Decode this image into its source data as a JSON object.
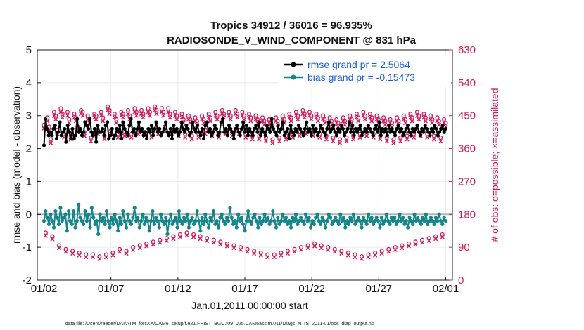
{
  "chart_data": {
    "type": "line",
    "title_line1": "Tropics 34912 / 36016 = 96.935%",
    "title_line2": "RADIOSONDE_V_WIND_COMPONENT @ 831 hPa",
    "xlabel": "Jan.01,2011 00:00:00 start",
    "ylabel_left": "rmse and bias (model - observation)",
    "ylabel_right": "# of obs: o=possible; ×=assimilated",
    "footnote": "data file: /Users/raeder/DAI/ATM_forcXX/CAM6_setup/f.e21.FHIST_BGC.f09_025.CAM6assim.011/Diags_NTrS_2011-01/obs_diag_output.nc",
    "x_ticks": [
      "01/02",
      "01/07",
      "01/12",
      "01/17",
      "01/22",
      "01/27",
      "02/01"
    ],
    "x_tick_days": [
      1,
      6,
      11,
      16,
      21,
      26,
      31
    ],
    "xlim_days": [
      0.5,
      31.5
    ],
    "ylim_left": [
      -2,
      5
    ],
    "y_ticks_left": [
      "-2",
      "-1",
      "0",
      "1",
      "2",
      "3",
      "4",
      "5"
    ],
    "ylim_right": [
      0,
      630
    ],
    "y_ticks_right": [
      "0",
      "90",
      "180",
      "270",
      "360",
      "450",
      "540",
      "630"
    ],
    "zero_line": 0,
    "colors": {
      "rmse": "#000000",
      "bias": "#14858a",
      "obs": "#d0185c",
      "legend_text": "#1a5fd6",
      "zero_line": "#b5b5b5"
    },
    "series": [
      {
        "name": "rmse grand pr = 2.5064",
        "axis": "left",
        "values": [
          2.1,
          2.9,
          2.6,
          2.4,
          2.5,
          2.4,
          2.6,
          2.7,
          2.3,
          2.5,
          2.8,
          2.4,
          2.5,
          2.6,
          2.2,
          2.7,
          2.5,
          2.3,
          2.6,
          2.3,
          2.4,
          2.9,
          2.5,
          2.6,
          2.4,
          2.5,
          2.8,
          2.7,
          2.6,
          2.9,
          2.5,
          2.4,
          2.6,
          2.2,
          2.7,
          2.5,
          2.5,
          2.6,
          2.4,
          2.7,
          2.8,
          2.3,
          2.4,
          2.6,
          2.3,
          2.4,
          2.6,
          2.5,
          2.7,
          2.3,
          2.8,
          2.6,
          2.5,
          2.4,
          2.7,
          2.9,
          2.5,
          2.6,
          2.4,
          2.6,
          2.8,
          2.5,
          2.6,
          2.4,
          2.5,
          2.3,
          2.6,
          2.5,
          2.7,
          2.4,
          2.6,
          2.8,
          2.5,
          2.6,
          2.4,
          2.5,
          2.6,
          2.8,
          2.5,
          2.4,
          2.6,
          2.3,
          2.7,
          2.5,
          2.6,
          2.4,
          2.5,
          2.8,
          2.6,
          2.5,
          2.7,
          2.6,
          2.4,
          2.5,
          2.8,
          2.6,
          2.5,
          2.7,
          2.5,
          2.4,
          2.6,
          2.3,
          2.7,
          2.8,
          2.5,
          2.6,
          2.4,
          2.5,
          2.7,
          2.6,
          2.4,
          2.5,
          2.8,
          2.9,
          2.5,
          2.6,
          2.4,
          2.7,
          2.6,
          2.5,
          2.3,
          2.6,
          2.7,
          2.5,
          2.4,
          2.6,
          2.8,
          2.5,
          2.7,
          2.4,
          2.6,
          2.5,
          2.4,
          2.6,
          2.7,
          2.5,
          2.8,
          2.4,
          2.6,
          2.5,
          2.4,
          2.7,
          2.6,
          2.5,
          2.9,
          2.6,
          2.5,
          2.4,
          2.7,
          2.5,
          2.6,
          2.8,
          2.4,
          2.5,
          2.6,
          2.3,
          2.7,
          2.5,
          2.4,
          2.6,
          2.5,
          2.7,
          2.6,
          2.5,
          2.4,
          2.6,
          2.8,
          2.5,
          2.6,
          2.4,
          2.7,
          2.5,
          2.6,
          2.4,
          2.5,
          2.7,
          2.6,
          2.5,
          2.4,
          2.6,
          2.8,
          2.5,
          2.6,
          2.7,
          2.5,
          2.4,
          2.6,
          2.5,
          2.7,
          2.6,
          2.4,
          2.5,
          2.6,
          2.8,
          2.5,
          2.7,
          2.4,
          2.6,
          2.5,
          2.6,
          2.7,
          2.4,
          2.5,
          2.6,
          2.5,
          2.7,
          2.6,
          2.5,
          2.4,
          2.6,
          2.7,
          2.5,
          2.8,
          2.4,
          2.6,
          2.5,
          2.6,
          2.4,
          2.7,
          2.5,
          2.6,
          2.5,
          2.4,
          2.6,
          2.7,
          2.5,
          2.6,
          2.4,
          2.5,
          2.6,
          2.7,
          2.5,
          2.4,
          2.6,
          2.5,
          2.6,
          2.7,
          2.5,
          2.4,
          2.6,
          2.5,
          2.7,
          2.6,
          2.5,
          2.4,
          2.6,
          2.5,
          2.7,
          2.6,
          2.4,
          2.5,
          2.6,
          2.7,
          2.5,
          2.6
        ]
      },
      {
        "name": "bias grand pr = -0.15473",
        "axis": "left",
        "values": [
          -0.2,
          0.1,
          -0.1,
          -0.3,
          0.0,
          -0.2,
          -0.4,
          0.1,
          -0.1,
          -0.3,
          0.2,
          -0.2,
          -0.1,
          0.0,
          -0.5,
          0.1,
          -0.2,
          -0.3,
          0.1,
          -0.4,
          -0.2,
          0.3,
          -0.1,
          -0.2,
          -0.3,
          0.1,
          -0.2,
          0.0,
          -0.4,
          0.2,
          -0.1,
          -0.3,
          -0.2,
          -0.6,
          0.0,
          -0.2,
          -0.1,
          -0.3,
          0.1,
          -0.2,
          -0.4,
          -0.1,
          -0.3,
          0.0,
          -0.2,
          -0.5,
          -0.1,
          -0.3,
          0.1,
          -0.2,
          -0.4,
          0.0,
          -0.2,
          -0.3,
          -0.1,
          0.2,
          -0.2,
          -0.1,
          -0.4,
          -0.2,
          0.0,
          -0.3,
          -0.1,
          -0.2,
          -0.5,
          -0.2,
          0.1,
          -0.3,
          -0.1,
          -0.2,
          -0.4,
          0.0,
          -0.2,
          -0.3,
          -0.1,
          -0.6,
          -0.2,
          0.0,
          -0.3,
          -0.2,
          -0.1,
          -0.4,
          0.1,
          -0.2,
          -0.3,
          -0.1,
          -0.2,
          0.0,
          -0.4,
          -0.2,
          -0.1,
          -0.3,
          -0.2,
          0.1,
          -0.2,
          -0.5,
          -0.1,
          -0.3,
          0.0,
          -0.2,
          -0.4,
          -0.1,
          -0.2,
          0.1,
          -0.3,
          -0.2,
          -0.4,
          -0.1,
          0.0,
          -0.2,
          -0.3,
          -0.1,
          -0.2,
          0.2,
          -0.1,
          -0.3,
          -0.2,
          -0.4,
          0.0,
          -0.2,
          -0.1,
          -0.3,
          -0.5,
          -0.2,
          0.1,
          -0.2,
          -0.3,
          -0.1,
          0.0,
          -0.2,
          -0.4,
          -0.1,
          -0.3,
          -0.2,
          0.0,
          -0.2,
          -0.1,
          -0.3,
          -0.2,
          0.1,
          -0.2,
          -0.4,
          -0.1,
          -0.3,
          -0.2,
          0.0,
          -0.2,
          -0.1,
          -0.3,
          -0.2,
          -0.4,
          -0.1,
          -0.2,
          0.0,
          -0.3,
          -0.2,
          -0.1,
          -0.2,
          -0.3,
          0.0,
          -0.2,
          -0.1,
          -0.4,
          -0.2,
          -0.3,
          -0.1,
          0.0,
          -0.2,
          -0.3,
          -0.1,
          -0.2,
          -0.4,
          -0.2,
          0.0,
          -0.1,
          -0.3,
          -0.2,
          -0.1,
          -0.2,
          -0.3,
          0.0,
          -0.2,
          -0.1,
          -0.4,
          -0.2,
          -0.3,
          -0.1,
          -0.2,
          0.0,
          -0.3,
          -0.2,
          -0.1,
          -0.2,
          -0.4,
          -0.1,
          -0.2,
          -0.3,
          0.0,
          -0.2,
          -0.1,
          -0.3,
          -0.2,
          -0.1,
          -0.2,
          -0.4,
          -0.1,
          -0.3,
          -0.2,
          0.0,
          -0.2,
          -0.3,
          -0.1,
          -0.2,
          -0.1,
          -0.3,
          -0.2,
          0.0,
          -0.2,
          -0.1,
          -0.3,
          -0.2,
          -0.4,
          -0.1,
          -0.2,
          -0.3,
          0.0,
          -0.2,
          -0.1,
          -0.2,
          -0.3,
          -0.1,
          -0.2,
          0.0,
          -0.3,
          -0.2,
          -0.1,
          -0.2,
          -0.3,
          -0.1,
          -0.2,
          0.0,
          -0.2,
          -0.3,
          -0.1,
          -0.2
        ]
      }
    ],
    "obs_possible": [
      425,
      130,
      445,
      420,
      385,
      120,
      460,
      450,
      410,
      95,
      470,
      455,
      400,
      85,
      460,
      440,
      395,
      80,
      455,
      445,
      420,
      75,
      465,
      460,
      405,
      70,
      450,
      440,
      390,
      70,
      455,
      450,
      410,
      65,
      460,
      445,
      395,
      70,
      475,
      465,
      410,
      75,
      455,
      440,
      400,
      85,
      460,
      455,
      405,
      80,
      465,
      450,
      400,
      90,
      470,
      460,
      410,
      95,
      465,
      455,
      405,
      100,
      470,
      460,
      400,
      105,
      475,
      465,
      410,
      110,
      470,
      460,
      420,
      115,
      470,
      455,
      410,
      120,
      460,
      450,
      405,
      125,
      455,
      440,
      400,
      130,
      450,
      440,
      395,
      125,
      445,
      435,
      400,
      120,
      450,
      440,
      410,
      115,
      455,
      445,
      405,
      110,
      460,
      450,
      400,
      105,
      465,
      455,
      410,
      100,
      460,
      450,
      405,
      95,
      465,
      455,
      410,
      90,
      460,
      450,
      400,
      85,
      455,
      445,
      395,
      80,
      450,
      440,
      395,
      75,
      445,
      435,
      390,
      70,
      440,
      430,
      385,
      70,
      445,
      435,
      390,
      75,
      450,
      440,
      395,
      80,
      455,
      445,
      400,
      85,
      460,
      450,
      405,
      90,
      465,
      455,
      410,
      95,
      460,
      450,
      405,
      100,
      455,
      445,
      400,
      95,
      450,
      440,
      395,
      90,
      445,
      435,
      390,
      85,
      440,
      430,
      385,
      80,
      445,
      435,
      390,
      75,
      450,
      440,
      395,
      70,
      455,
      445,
      400,
      65,
      460,
      450,
      405,
      70,
      455,
      445,
      400,
      75,
      450,
      440,
      395,
      80,
      445,
      435,
      390,
      85,
      440,
      430,
      385,
      90,
      445,
      435,
      390,
      95,
      450,
      440,
      395,
      100,
      455,
      445,
      400,
      105,
      460,
      450,
      405,
      110,
      455,
      445,
      400,
      115,
      450,
      440,
      395,
      120,
      445,
      435,
      390,
      125,
      440,
      430
    ],
    "obs_assimilated": [
      415,
      122,
      435,
      410,
      375,
      112,
      450,
      440,
      400,
      88,
      460,
      445,
      390,
      78,
      450,
      430,
      385,
      73,
      445,
      435,
      410,
      68,
      455,
      450,
      395,
      63,
      440,
      430,
      380,
      63,
      445,
      440,
      400,
      58,
      450,
      435,
      385,
      63,
      465,
      455,
      400,
      68,
      445,
      430,
      390,
      78,
      450,
      445,
      395,
      73,
      455,
      440,
      390,
      83,
      460,
      450,
      400,
      88,
      455,
      445,
      395,
      93,
      460,
      450,
      390,
      98,
      465,
      455,
      400,
      103,
      460,
      450,
      410,
      108,
      460,
      445,
      400,
      113,
      450,
      440,
      395,
      118,
      445,
      430,
      390,
      123,
      440,
      430,
      385,
      118,
      435,
      425,
      390,
      113,
      440,
      430,
      400,
      108,
      445,
      435,
      395,
      103,
      450,
      440,
      390,
      98,
      455,
      445,
      400,
      93,
      450,
      440,
      395,
      88,
      455,
      445,
      400,
      83,
      450,
      440,
      390,
      78,
      445,
      435,
      385,
      73,
      440,
      430,
      385,
      68,
      435,
      425,
      380,
      63,
      430,
      420,
      375,
      63,
      435,
      425,
      380,
      68,
      440,
      430,
      385,
      73,
      445,
      435,
      390,
      78,
      450,
      440,
      395,
      83,
      455,
      445,
      400,
      88,
      450,
      440,
      395,
      93,
      445,
      435,
      390,
      88,
      440,
      430,
      385,
      83,
      435,
      425,
      380,
      78,
      430,
      420,
      375,
      73,
      435,
      425,
      380,
      68,
      440,
      430,
      385,
      63,
      445,
      435,
      390,
      58,
      450,
      440,
      395,
      63,
      445,
      435,
      390,
      68,
      440,
      430,
      385,
      73,
      435,
      425,
      380,
      78,
      430,
      420,
      375,
      83,
      435,
      425,
      380,
      88,
      440,
      430,
      385,
      93,
      445,
      435,
      390,
      98,
      450,
      440,
      395,
      103,
      445,
      435,
      390,
      108,
      440,
      430,
      385,
      113,
      435,
      425,
      380,
      118,
      430,
      420
    ]
  }
}
